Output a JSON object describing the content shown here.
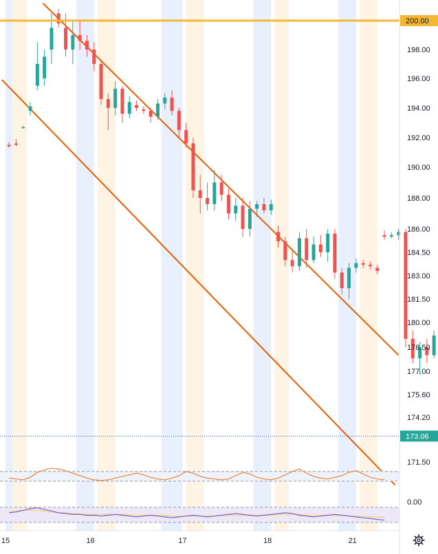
{
  "chart_data": {
    "type": "candlestick",
    "title": "",
    "price_axis": {
      "ticks": [
        "200.00",
        "198.00",
        "196.00",
        "194.00",
        "192.00",
        "190.00",
        "188.00",
        "186.00",
        "184.50",
        "183.00",
        "181.50",
        "180.00",
        "178.50",
        "177.00",
        "175.60",
        "174.20",
        "171.50"
      ],
      "ylim": [
        170,
        201
      ]
    },
    "time_axis": {
      "ticks": [
        {
          "label": "15",
          "slot": 0
        },
        {
          "label": "16",
          "slot": 12
        },
        {
          "label": "17",
          "slot": 25
        },
        {
          "label": "18",
          "slot": 37
        },
        {
          "label": "21",
          "slot": 49
        }
      ]
    },
    "horizontal_line": {
      "value": 200.0,
      "label": "200.00",
      "color": "#f5b731"
    },
    "last_price": {
      "value": 173.06,
      "label": "173.06",
      "color": "#26a69a"
    },
    "channel_color": "#e65c00",
    "channel_lines": [
      {
        "from": {
          "slot": 5.3,
          "value": 201.2
        },
        "to": {
          "slot": 55.5,
          "value": 178.0
        }
      },
      {
        "from": {
          "slot": -0.5,
          "value": 195.9
        },
        "to": {
          "slot": 55.0,
          "value": 170.1
        }
      }
    ],
    "colors": {
      "up": "#26a69a",
      "down": "#ef5350",
      "session_blue": "#e8effd",
      "session_orange": "#fff3e4"
    },
    "session_bands": [
      {
        "type": "blue",
        "start": 0,
        "end": 1
      },
      {
        "type": "orange",
        "start": 1,
        "end": 3
      },
      {
        "type": "blue",
        "start": 10,
        "end": 12.5
      },
      {
        "type": "orange",
        "start": 13,
        "end": 15.5
      },
      {
        "type": "blue",
        "start": 22,
        "end": 25
      },
      {
        "type": "orange",
        "start": 25.5,
        "end": 28
      },
      {
        "type": "blue",
        "start": 35,
        "end": 37.5
      },
      {
        "type": "orange",
        "start": 38,
        "end": 40
      },
      {
        "type": "blue",
        "start": 47,
        "end": 49.5
      },
      {
        "type": "orange",
        "start": 50,
        "end": 52.5
      }
    ],
    "candles": [
      {
        "o": 191.5,
        "h": 191.7,
        "l": 191.3,
        "c": 191.4
      },
      {
        "o": 191.6,
        "h": 191.9,
        "l": 191.4,
        "c": 191.5
      },
      {
        "o": 192.7,
        "h": 192.8,
        "l": 192.6,
        "c": 192.7
      },
      {
        "o": 193.8,
        "h": 194.4,
        "l": 193.5,
        "c": 194.1
      },
      {
        "o": 195.5,
        "h": 198.5,
        "l": 195.2,
        "c": 197.0
      },
      {
        "o": 196.0,
        "h": 198.0,
        "l": 195.5,
        "c": 197.5
      },
      {
        "o": 198.0,
        "h": 200.5,
        "l": 197.0,
        "c": 199.5
      },
      {
        "o": 200.5,
        "h": 200.8,
        "l": 199.5,
        "c": 199.8
      },
      {
        "o": 199.5,
        "h": 200.5,
        "l": 197.5,
        "c": 198.0
      },
      {
        "o": 198.0,
        "h": 200.0,
        "l": 197.0,
        "c": 199.0
      },
      {
        "o": 199.0,
        "h": 200.0,
        "l": 198.0,
        "c": 198.6
      },
      {
        "o": 198.6,
        "h": 199.0,
        "l": 197.5,
        "c": 198.0
      },
      {
        "o": 198.0,
        "h": 198.5,
        "l": 196.5,
        "c": 197.0
      },
      {
        "o": 197.0,
        "h": 197.3,
        "l": 194.2,
        "c": 194.6
      },
      {
        "o": 194.6,
        "h": 195.0,
        "l": 192.5,
        "c": 194.0
      },
      {
        "o": 194.0,
        "h": 195.8,
        "l": 193.5,
        "c": 195.3
      },
      {
        "o": 195.3,
        "h": 195.5,
        "l": 193.0,
        "c": 193.6
      },
      {
        "o": 193.6,
        "h": 194.8,
        "l": 193.3,
        "c": 194.4
      },
      {
        "o": 194.2,
        "h": 194.5,
        "l": 193.8,
        "c": 194.0
      },
      {
        "o": 193.9,
        "h": 194.1,
        "l": 193.6,
        "c": 193.8
      },
      {
        "o": 193.8,
        "h": 194.0,
        "l": 193.0,
        "c": 193.4
      },
      {
        "o": 193.4,
        "h": 194.6,
        "l": 193.2,
        "c": 194.3
      },
      {
        "o": 194.3,
        "h": 195.0,
        "l": 193.9,
        "c": 194.7
      },
      {
        "o": 194.7,
        "h": 195.2,
        "l": 193.5,
        "c": 193.8
      },
      {
        "o": 193.8,
        "h": 194.0,
        "l": 192.0,
        "c": 192.5
      },
      {
        "o": 192.5,
        "h": 193.0,
        "l": 191.3,
        "c": 191.6
      },
      {
        "o": 191.6,
        "h": 192.0,
        "l": 188.0,
        "c": 188.5
      },
      {
        "o": 188.5,
        "h": 189.5,
        "l": 187.0,
        "c": 188.0
      },
      {
        "o": 188.0,
        "h": 189.0,
        "l": 187.2,
        "c": 187.6
      },
      {
        "o": 187.6,
        "h": 189.8,
        "l": 187.2,
        "c": 189.0
      },
      {
        "o": 189.0,
        "h": 189.5,
        "l": 187.8,
        "c": 188.2
      }
    ],
    "indicators": [
      {
        "name": "oscillator-1",
        "color": "#e8823a",
        "zero_label": "0.00",
        "values": [
          0.2,
          0.1,
          0.0,
          0.3,
          0.9,
          1.2,
          1.4,
          1.3,
          1.1,
          0.8,
          0.5,
          0.2,
          0.0,
          -0.1,
          0.0,
          0.2,
          0.4,
          0.6,
          0.8,
          0.6,
          0.3,
          0.1,
          0.0,
          0.2,
          0.5,
          1.0,
          0.8,
          0.4,
          0.2,
          0.1,
          0.0,
          0.1,
          0.5,
          0.9,
          0.7,
          0.3,
          0.1,
          0.0,
          0.2,
          0.6,
          1.0,
          1.3,
          0.8,
          0.4,
          0.2,
          0.1,
          0.3,
          0.5,
          0.9,
          1.1,
          0.7,
          0.3,
          0.1,
          0.0
        ]
      },
      {
        "name": "oscillator-2",
        "color": "#7b5fc4",
        "secondary_color": "#f5d27a",
        "values": [
          0.5,
          0.6,
          0.8,
          1.0,
          1.1,
          0.9,
          0.7,
          0.5,
          0.4,
          0.3,
          0.3,
          0.2,
          0.2,
          0.1,
          0.2,
          0.3,
          0.2,
          0.1,
          0.0,
          0.1,
          0.2,
          0.1,
          0.0,
          -0.1,
          0.0,
          0.1,
          0.2,
          0.1,
          0.0,
          0.1,
          0.2,
          0.3,
          0.4,
          0.3,
          0.2,
          0.1,
          0.2,
          0.3,
          0.4,
          0.5,
          0.4,
          0.2,
          0.1,
          0.0,
          0.1,
          0.2,
          0.3,
          0.2,
          0.1,
          0.0,
          -0.1,
          -0.2,
          -0.3,
          -0.4
        ],
        "secondary_values": [
          0.6,
          0.7,
          0.8,
          0.8,
          0.8,
          0.7,
          0.6,
          0.5,
          0.5,
          0.4,
          0.4,
          0.3,
          0.3,
          0.3,
          0.3,
          0.3,
          0.3,
          0.2,
          0.2,
          0.2,
          0.2,
          0.2,
          0.2,
          0.1,
          0.1,
          0.1,
          0.1,
          0.1,
          0.1,
          0.1,
          0.2,
          0.2,
          0.2,
          0.2,
          0.2,
          0.2,
          0.2,
          0.2,
          0.3,
          0.3,
          0.3,
          0.3,
          0.2,
          0.2,
          0.2,
          0.2,
          0.2,
          0.2,
          0.1,
          0.1,
          0.1,
          0.0,
          0.0,
          0.0
        ]
      }
    ]
  },
  "toolbar": {
    "settings_icon": "gear-icon"
  }
}
